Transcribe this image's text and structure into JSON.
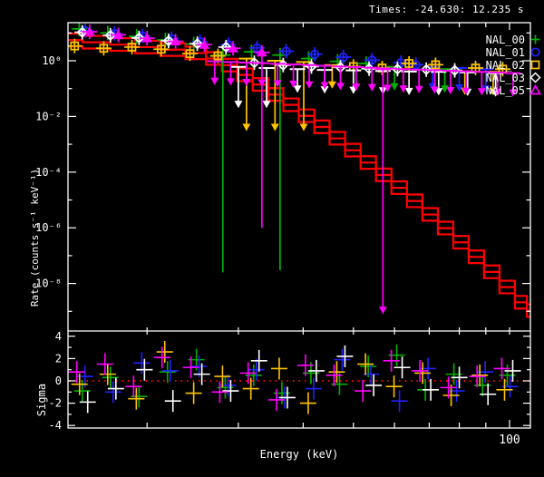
{
  "window": {
    "title": "Times: -24.630: 12.235 s"
  },
  "legend": {
    "items": [
      {
        "label": "NAL_00",
        "symbol": "plus",
        "color": "#00b000"
      },
      {
        "label": "NAL_01",
        "symbol": "circle",
        "color": "#2222ff"
      },
      {
        "label": "NAL_02",
        "symbol": "square",
        "color": "#ffc400"
      },
      {
        "label": "NAL_03",
        "symbol": "diamond",
        "color": "#ffffff"
      },
      {
        "label": "NAL_05",
        "symbol": "triangle",
        "color": "#ff00ff"
      }
    ]
  },
  "chart_data": {
    "type": "scatter",
    "title": "Times: -24.630: 12.235 s",
    "xlabel": "Energy (keV)",
    "ylabel_main": "Rate (counts s⁻¹ keV⁻¹)",
    "ylabel_resid": "Sigma",
    "x_scale": "log",
    "y_scale_main": "log",
    "xlim": [
      14,
      110
    ],
    "ylim_main": [
      2e-10,
      23
    ],
    "ylim_resid": [
      -4.3,
      4.3
    ],
    "x_ticks": [
      20,
      30,
      40,
      50,
      60,
      70,
      80,
      90,
      100
    ],
    "x_major_tick": 100,
    "x_tick_label": "100",
    "y_major_ticks_main": [
      {
        "exp": 0,
        "label": "10⁰"
      },
      {
        "exp": -2,
        "label": "10⁻²"
      },
      {
        "exp": -4,
        "label": "10⁻⁴"
      },
      {
        "exp": -6,
        "label": "10⁻⁶"
      },
      {
        "exp": -8,
        "label": "10⁻⁸"
      }
    ],
    "y_minor_tick_exps_main": [
      1,
      -1,
      -3,
      -5,
      -7,
      -9
    ],
    "sigma_major_ticks": [
      {
        "v": 4,
        "label": "4"
      },
      {
        "v": 2,
        "label": "2"
      },
      {
        "v": 0,
        "label": "0"
      },
      {
        "v": -2,
        "label": "-2"
      },
      {
        "v": -4,
        "label": "-4"
      }
    ],
    "sigma_minor_ticks": [
      3,
      1,
      -1,
      -3
    ],
    "zero_line_color": "#ff0000",
    "model": {
      "color": "#ff0000",
      "bundle_factors": [
        1.7,
        1.0,
        0.6
      ],
      "energy": [
        14.1,
        16,
        18,
        20,
        22.5,
        25,
        27,
        28.8,
        30.9,
        33.1,
        35.4,
        37.9,
        40.6,
        43.5,
        46.5,
        49.9,
        53.4,
        57.2,
        61.3,
        65.6,
        70.3,
        75.3,
        80.6,
        86.3,
        92.4,
        99,
        106,
        110
      ],
      "rate": [
        5.5,
        4.6,
        3.8,
        3.1,
        2.5,
        1.9,
        1.2,
        0.69,
        0.31,
        0.14,
        0.061,
        0.026,
        0.0105,
        0.0042,
        0.00163,
        0.00061,
        0.00022,
        7.9e-05,
        2.74e-05,
        9.2e-06,
        3e-06,
        9.7e-07,
        3e-07,
        9e-08,
        2.6e-08,
        7.4e-09,
        2.1e-09,
        1.05e-09
      ]
    },
    "series": [
      {
        "name": "NAL_00",
        "color": "#00b000",
        "symbol": "plus",
        "points": [
          {
            "e": 14.8,
            "r": 14
          },
          {
            "e": 16.8,
            "r": 10
          },
          {
            "e": 19.1,
            "r": 7.5
          },
          {
            "e": 21.7,
            "r": 5.6
          },
          {
            "e": 24.6,
            "r": 4.0
          },
          {
            "e": 28,
            "r": 1.6,
            "rlo": 2.5e-08
          },
          {
            "e": 31.8,
            "r": 2.1
          },
          {
            "e": 36.1,
            "r": 1.6,
            "rlo": 3e-08
          },
          {
            "e": 41,
            "r": 1.2
          },
          {
            "e": 46.6,
            "r": 0.95
          },
          {
            "e": 52.9,
            "r": 0.8
          }
        ],
        "upper_limits": [
          {
            "e": 60,
            "r": 0.6
          },
          {
            "e": 75,
            "r": 0.5
          }
        ]
      },
      {
        "name": "NAL_01",
        "color": "#2222ff",
        "symbol": "circle",
        "points": [
          {
            "e": 15.2,
            "r": 12
          },
          {
            "e": 17.3,
            "r": 9.5
          },
          {
            "e": 19.6,
            "r": 7.8
          },
          {
            "e": 22.3,
            "r": 6.2
          },
          {
            "e": 25.3,
            "r": 4.9
          },
          {
            "e": 28.7,
            "r": 3.8
          },
          {
            "e": 32.6,
            "r": 2.9
          },
          {
            "e": 37.1,
            "r": 2.2
          },
          {
            "e": 42.1,
            "r": 1.7
          },
          {
            "e": 47.8,
            "r": 1.35
          },
          {
            "e": 54.3,
            "r": 1.05
          },
          {
            "e": 61.7,
            "r": 0.85
          },
          {
            "e": 66,
            "r": 0.72
          }
        ],
        "upper_limits": [
          {
            "e": 71,
            "r": 0.6
          },
          {
            "e": 80,
            "r": 0.55
          },
          {
            "e": 90,
            "r": 0.5
          }
        ]
      },
      {
        "name": "NAL_02",
        "color": "#ffc400",
        "symbol": "square",
        "points": [
          {
            "e": 14.5,
            "r": 3.4
          },
          {
            "e": 16.5,
            "r": 2.8
          },
          {
            "e": 18.7,
            "r": 3.1
          },
          {
            "e": 21.3,
            "r": 2.6
          },
          {
            "e": 24.2,
            "r": 1.8
          },
          {
            "e": 27.4,
            "r": 1.5
          },
          {
            "e": 50,
            "r": 0.62
          },
          {
            "e": 56.8,
            "r": 0.55
          },
          {
            "e": 64,
            "r": 0.8
          },
          {
            "e": 72,
            "r": 0.72
          },
          {
            "e": 86,
            "r": 0.55
          },
          {
            "e": 97,
            "r": 0.5
          }
        ],
        "upper_limits": [
          {
            "e": 31.1,
            "r": 1.2,
            "tip": 0.003
          },
          {
            "e": 35.3,
            "r": 1.0,
            "tip": 0.003
          },
          {
            "e": 40.1,
            "r": 0.9,
            "tip": 0.003
          },
          {
            "e": 45.5,
            "r": 0.7
          },
          {
            "e": 82,
            "r": 0.42
          },
          {
            "e": 93,
            "r": 0.4
          }
        ]
      },
      {
        "name": "NAL_03",
        "color": "#ffffff",
        "symbol": "diamond",
        "points": [
          {
            "e": 15,
            "r": 10.5
          },
          {
            "e": 17,
            "r": 8.2
          },
          {
            "e": 19.3,
            "r": 6.6
          },
          {
            "e": 22,
            "r": 5.2
          },
          {
            "e": 25,
            "r": 4.1
          },
          {
            "e": 28.4,
            "r": 3.1
          },
          {
            "e": 32.2,
            "r": 0.85
          },
          {
            "e": 36.6,
            "r": 0.7
          },
          {
            "e": 41.5,
            "r": 0.62
          },
          {
            "e": 47.2,
            "r": 0.58
          },
          {
            "e": 53.6,
            "r": 0.52
          },
          {
            "e": 60.8,
            "r": 0.5
          },
          {
            "e": 69.1,
            "r": 0.48
          },
          {
            "e": 78.4,
            "r": 0.45
          }
        ],
        "upper_limits": [
          {
            "e": 30,
            "r": 0.6,
            "tip": 0.02
          },
          {
            "e": 34,
            "r": 0.55,
            "tip": 0.02
          },
          {
            "e": 39,
            "r": 0.5
          },
          {
            "e": 44,
            "r": 0.47
          },
          {
            "e": 50,
            "r": 0.45
          },
          {
            "e": 57,
            "r": 0.43
          },
          {
            "e": 64,
            "r": 0.41
          },
          {
            "e": 73,
            "r": 0.4
          },
          {
            "e": 83,
            "r": 0.38
          },
          {
            "e": 94,
            "r": 0.36
          }
        ]
      },
      {
        "name": "NAL_05",
        "color": "#ff00ff",
        "symbol": "triangle",
        "points": [
          {
            "e": 15.5,
            "r": 11
          },
          {
            "e": 17.6,
            "r": 8.5
          },
          {
            "e": 20,
            "r": 6.5
          },
          {
            "e": 22.7,
            "r": 5
          },
          {
            "e": 25.8,
            "r": 3.8
          },
          {
            "e": 29.3,
            "r": 2.8
          },
          {
            "e": 33.3,
            "r": 2.0,
            "rlo": 1e-06
          }
        ],
        "upper_limits": [
          {
            "e": 27,
            "r": 0.95
          },
          {
            "e": 29,
            "r": 0.9
          },
          {
            "e": 31.1,
            "r": 0.86
          },
          {
            "e": 33.3,
            "r": 0.82
          },
          {
            "e": 35.7,
            "r": 0.78
          },
          {
            "e": 38.3,
            "r": 0.74
          },
          {
            "e": 41.1,
            "r": 0.7
          },
          {
            "e": 44,
            "r": 0.66
          },
          {
            "e": 47.2,
            "r": 0.62
          },
          {
            "e": 50.6,
            "r": 0.59
          },
          {
            "e": 54.3,
            "r": 0.56
          },
          {
            "e": 57,
            "r": 0.5,
            "tip": 8e-10
          },
          {
            "e": 58.2,
            "r": 0.53
          },
          {
            "e": 62.4,
            "r": 0.5
          },
          {
            "e": 66.9,
            "r": 0.48
          },
          {
            "e": 71.7,
            "r": 0.46
          },
          {
            "e": 76.9,
            "r": 0.44
          },
          {
            "e": 82.4,
            "r": 0.42
          },
          {
            "e": 88.4,
            "r": 0.4
          },
          {
            "e": 94.8,
            "r": 0.38
          },
          {
            "e": 101.6,
            "r": 0.36
          }
        ]
      }
    ],
    "residuals": {
      "energies": [
        15,
        17,
        19.3,
        21.9,
        24.9,
        28.3,
        32.1,
        36.4,
        41.4,
        47,
        53.4,
        60.6,
        68.8,
        78.1,
        88.7,
        99
      ],
      "series": [
        {
          "name": "NAL_00",
          "color": "#00b000",
          "sigma": [
            -0.9,
            0.3,
            -1.4,
            0.8,
            1.9,
            -0.6,
            0.5,
            -1.1,
            0.7,
            -0.3,
            1.3,
            2.3,
            -0.8,
            0.6,
            -0.4,
            0.5
          ]
        },
        {
          "name": "NAL_01",
          "color": "#2222ff",
          "sigma": [
            0.4,
            -1.0,
            1.6,
            0.9,
            1.3,
            -0.4,
            1.0,
            -1.5,
            -0.7,
            1.9,
            0.6,
            -1.8,
            1.1,
            -0.9,
            0.8,
            -0.5
          ]
        },
        {
          "name": "NAL_02",
          "color": "#ffc400",
          "sigma": [
            -0.3,
            0.6,
            -1.6,
            2.6,
            -1.1,
            0.4,
            -0.7,
            1.1,
            -2.0,
            0.8,
            1.5,
            -0.5,
            0.7,
            -1.3,
            0.5,
            -0.8
          ]
        },
        {
          "name": "NAL_03",
          "color": "#ffffff",
          "sigma": [
            -1.9,
            -0.7,
            1.0,
            -1.8,
            0.6,
            -0.9,
            1.8,
            -1.5,
            0.9,
            2.2,
            -0.4,
            1.2,
            -0.8,
            0.3,
            -1.2,
            0.9
          ]
        },
        {
          "name": "NAL_05",
          "color": "#ff00ff",
          "sigma": [
            0.8,
            1.5,
            -0.5,
            2.1,
            1.2,
            -1.0,
            0.7,
            -1.7,
            1.4,
            0.5,
            -0.9,
            1.8,
            0.9,
            -0.6,
            0.4,
            1.1
          ]
        }
      ]
    }
  }
}
